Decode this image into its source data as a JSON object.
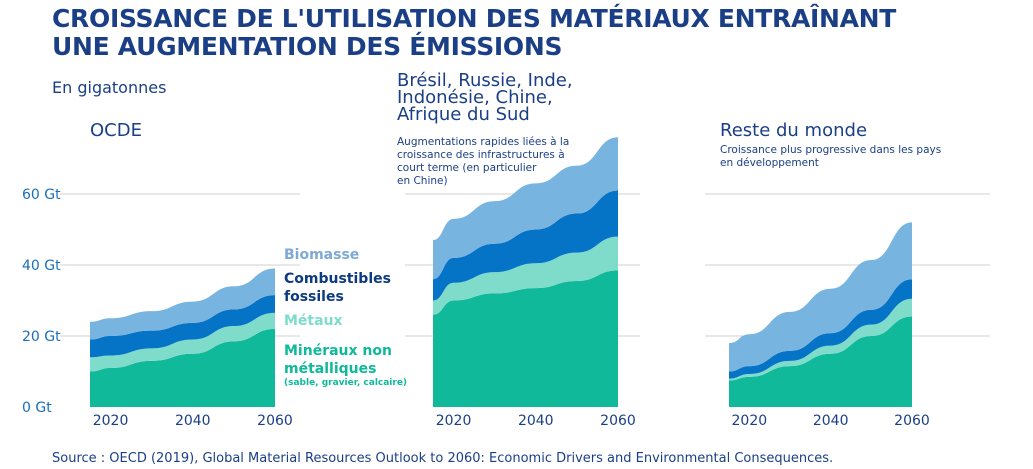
{
  "title": {
    "line1": "CROISSANCE DE L'UTILISATION DES MATÉRIAUX ENTRAÎNANT",
    "line2": "UNE AUGMENTATION DES ÉMISSIONS"
  },
  "unit_label": "En gigatonnes",
  "panels": {
    "oecd": {
      "title": "OCDE"
    },
    "brics": {
      "title_lines": [
        "Brésil, Russie, Inde,",
        "Indonésie, Chine,",
        "Afrique du Sud"
      ],
      "subtitle_lines": [
        "Augmentations rapides liées à la",
        "croissance des infrastructures à",
        "court terme (en particulier",
        "en Chine)"
      ]
    },
    "row": {
      "title": "Reste du monde",
      "subtitle_lines": [
        "Croissance plus progressive dans les pays",
        "en développement"
      ]
    }
  },
  "legend": {
    "biomass": "Biomasse",
    "fossil_line1": "Combustibles",
    "fossil_line2": "fossiles",
    "metals": "Métaux",
    "minerals_line1": "Minéraux non",
    "minerals_line2": "métalliques",
    "minerals_note": "(sable, gravier, calcaire)"
  },
  "source": "Source : OECD (2019), Global Material Resources Outlook to 2060: Economic Drivers and Environmental Consequences.",
  "colors": {
    "minerals": "#10b99a",
    "metals": "#7fdccb",
    "fossil": "#0573c6",
    "biomass": "#78b4e0",
    "title": "#1b3f86",
    "axis_text": "#1a6fb8",
    "grid": "#d0d0d0"
  },
  "chart_data": {
    "type": "area",
    "stacked": true,
    "ylabel": "En gigatonnes",
    "y_ticks": [
      0,
      20,
      40,
      60
    ],
    "y_tick_labels": [
      "0 Gt",
      "20 Gt",
      "40 Gt",
      "60 Gt"
    ],
    "ylim": [
      0,
      70
    ],
    "x_ticks": [
      2020,
      2040,
      2060
    ],
    "x": [
      2015,
      2020,
      2030,
      2040,
      2050,
      2060
    ],
    "layer_order": [
      "Minéraux non métalliques",
      "Métaux",
      "Combustibles fossiles",
      "Biomasse"
    ],
    "panels": [
      {
        "name": "OCDE",
        "series": [
          {
            "name": "Minéraux non métalliques",
            "values": [
              10,
              11,
              13,
              15,
              18.5,
              22
            ]
          },
          {
            "name": "Métaux",
            "values": [
              4,
              3.5,
              3.5,
              4,
              4.3,
              4.5
            ]
          },
          {
            "name": "Combustibles fossiles",
            "values": [
              5,
              5.5,
              5,
              4.7,
              4.7,
              5
            ]
          },
          {
            "name": "Biomasse",
            "values": [
              5,
              5,
              5.5,
              6,
              6.5,
              7.5
            ]
          }
        ]
      },
      {
        "name": "Brésil, Russie, Inde, Indonésie, Chine, Afrique du Sud",
        "series": [
          {
            "name": "Minéraux non métalliques",
            "values": [
              26,
              30,
              32,
              33.5,
              35.5,
              38.5
            ]
          },
          {
            "name": "Métaux",
            "values": [
              4,
              5,
              6,
              7,
              8,
              9.5
            ]
          },
          {
            "name": "Combustibles fossiles",
            "values": [
              6,
              7,
              8,
              9.5,
              11,
              13
            ]
          },
          {
            "name": "Biomasse",
            "values": [
              11,
              11,
              12,
              13,
              13.5,
              15
            ]
          }
        ]
      },
      {
        "name": "Reste du monde",
        "series": [
          {
            "name": "Minéraux non métalliques",
            "values": [
              7.5,
              8.5,
              11.5,
              15,
              20,
              25.5
            ]
          },
          {
            "name": "Métaux",
            "values": [
              0.5,
              0.8,
              1.5,
              2.3,
              3.2,
              5
            ]
          },
          {
            "name": "Combustibles fossiles",
            "values": [
              2,
              2.2,
              2.8,
              3.5,
              4.2,
              5.5
            ]
          },
          {
            "name": "Biomasse",
            "values": [
              8,
              9,
              11,
              12.5,
              14,
              16
            ]
          }
        ]
      }
    ]
  }
}
